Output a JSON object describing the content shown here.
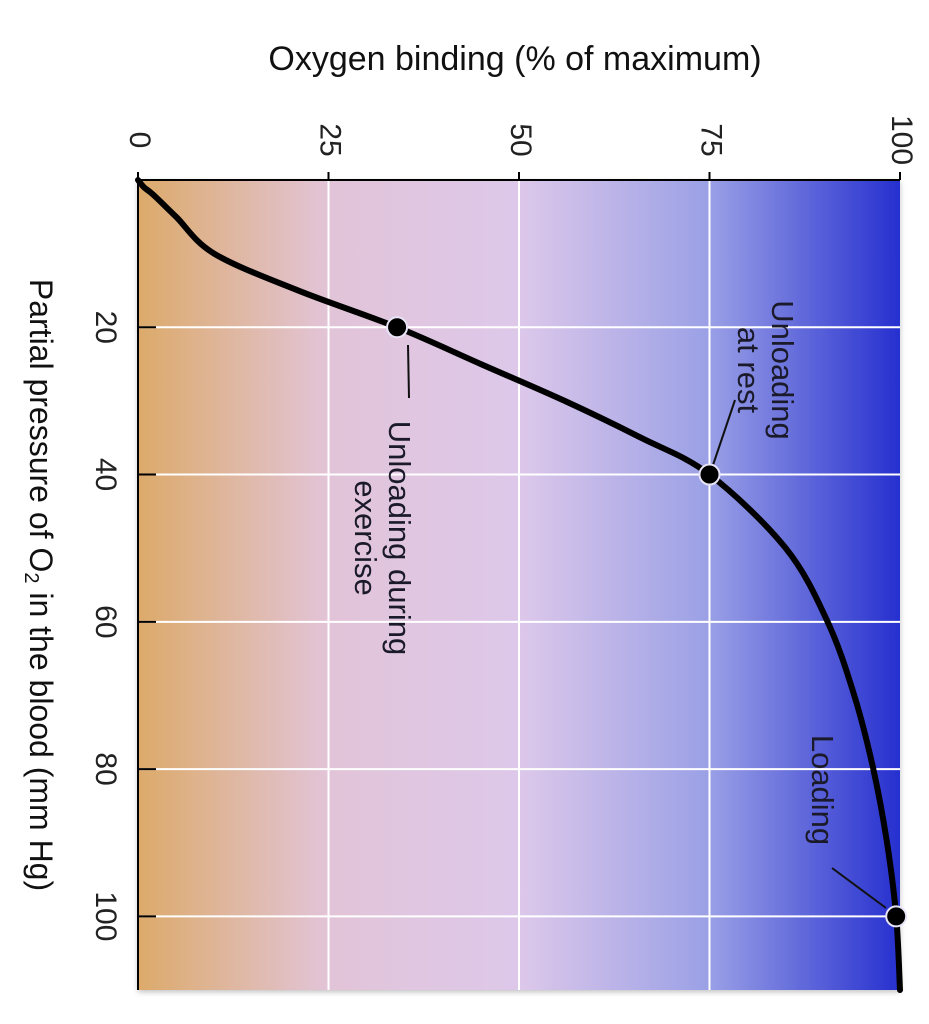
{
  "chart_data": {
    "type": "line",
    "orientation": "rotated 90 degrees clockwise",
    "title": "",
    "ylabel": "Oxygen binding (% of maximum)",
    "xlabel_parts": [
      "Partial pressure of O",
      "2",
      " in the blood (mm Hg)"
    ],
    "xlim": [
      0,
      110
    ],
    "ylim": [
      0,
      100
    ],
    "x_ticks": [
      "20",
      "40",
      "60",
      "80",
      "100"
    ],
    "y_ticks": [
      "0",
      "25",
      "50",
      "75",
      "100"
    ],
    "grid": true,
    "background_gradient": [
      "#dcaa6a",
      "#e2c4d8",
      "#ddc8ea",
      "#9aa0e6",
      "#2630cf"
    ],
    "curve_color": "#000000",
    "series": [
      {
        "x": [
          0,
          1,
          2,
          5,
          10,
          15,
          20,
          25,
          30,
          35,
          40,
          50,
          60,
          70,
          80,
          90,
          100,
          110
        ],
        "y": [
          0,
          0.8,
          2,
          5,
          10,
          21,
          34,
          45,
          56,
          66,
          75,
          85,
          90.5,
          94,
          96.5,
          98.3,
          99.5,
          100
        ]
      }
    ],
    "annotations": [
      {
        "lines": [
          "Unloading",
          "at rest"
        ],
        "x": 40,
        "y": 75
      },
      {
        "lines": [
          "Unloading during",
          "exercise"
        ],
        "x": 20,
        "y": 34
      },
      {
        "lines": [
          "Loading"
        ],
        "x": 100,
        "y": 99.5
      }
    ]
  }
}
